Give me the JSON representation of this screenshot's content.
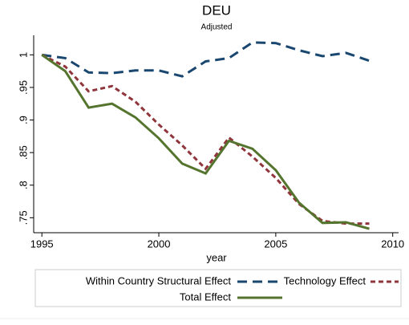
{
  "chart_data": {
    "type": "line",
    "title": "DEU",
    "subtitle": "Adjusted",
    "x_label": "year",
    "x": [
      1995,
      1996,
      1997,
      1998,
      1999,
      2000,
      2001,
      2002,
      2003,
      2004,
      2005,
      2006,
      2007,
      2008,
      2009
    ],
    "series": [
      {
        "name": "Within Country Structural Effect",
        "color": "#1a476f",
        "values": [
          1.0,
          0.995,
          0.973,
          0.972,
          0.976,
          0.976,
          0.967,
          0.99,
          0.995,
          1.019,
          1.018,
          1.007,
          0.998,
          1.003,
          0.991
        ]
      },
      {
        "name": "Technology Effect",
        "color": "#90353b",
        "values": [
          1.0,
          0.982,
          0.944,
          0.952,
          0.928,
          0.893,
          0.861,
          0.825,
          0.873,
          0.844,
          0.811,
          0.771,
          0.745,
          0.741,
          0.741
        ]
      },
      {
        "name": "Total Effect",
        "color": "#55752f",
        "values": [
          1.0,
          0.975,
          0.919,
          0.925,
          0.904,
          0.872,
          0.833,
          0.818,
          0.868,
          0.856,
          0.823,
          0.773,
          0.742,
          0.743,
          0.733
        ]
      }
    ],
    "xlim": [
      1994.65,
      2010.25
    ],
    "xticks": [
      1995,
      2000,
      2005,
      2010
    ],
    "ylim": [
      0.727,
      1.03
    ],
    "yticks": [
      {
        "value": 0.75,
        "label": ".75"
      },
      {
        "value": 0.8,
        "label": ".8"
      },
      {
        "value": 0.85,
        "label": ".85"
      },
      {
        "value": 0.9,
        "label": ".9"
      },
      {
        "value": 0.95,
        "label": ".95"
      },
      1
    ],
    "grid": false,
    "legend": "bottom"
  }
}
